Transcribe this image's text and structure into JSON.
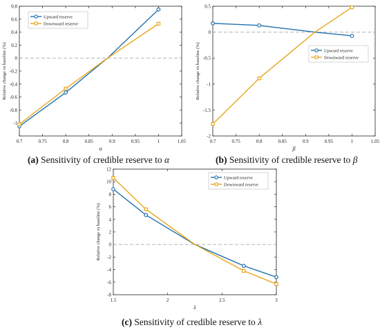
{
  "chart_data": [
    {
      "type": "line",
      "caption": {
        "label": "(a)",
        "text": "Sensitivity of credible reserve to",
        "symbol": "α"
      },
      "xlabel": "α",
      "ylabel": "Relative change vs baseline (%)",
      "xlim": [
        0.7,
        1.05
      ],
      "ylim": [
        -1.2,
        0.8
      ],
      "xticks": [
        0.7,
        0.75,
        0.8,
        0.85,
        0.9,
        0.95,
        1,
        1.05
      ],
      "xtick_labels": [
        "0.7",
        "0.75",
        "0.8",
        "0.85",
        "0.9",
        "0.95",
        "1",
        "1.05"
      ],
      "yticks": [
        -1.2,
        -1,
        -0.8,
        -0.6,
        -0.4,
        -0.2,
        0,
        0.2,
        0.4,
        0.6,
        0.8
      ],
      "ytick_labels": [
        "",
        "-1",
        "-0.8",
        "-0.6",
        "-0.4",
        "-0.2",
        "0",
        "0.2",
        "0.4",
        "0.6",
        "0.8"
      ],
      "baseline": 0,
      "legend": "top-left",
      "series": [
        {
          "name": "Upward reserve",
          "color": "#1f6fad",
          "marker": "circle",
          "x": [
            0.7,
            0.8,
            0.89,
            1.0
          ],
          "y": [
            -1.05,
            -0.53,
            0,
            0.75
          ]
        },
        {
          "name": "Downward reserve",
          "color": "#e6a619",
          "marker": "square",
          "x": [
            0.7,
            0.8,
            0.89,
            1.0
          ],
          "y": [
            -1.02,
            -0.47,
            0,
            0.53
          ]
        }
      ]
    },
    {
      "type": "line",
      "caption": {
        "label": "(b)",
        "text": "Sensitivity of credible reserve to",
        "symbol": "β"
      },
      "xlabel": "β",
      "ylabel": "Relative change vs baseline (%)",
      "xlim": [
        0.7,
        1.05
      ],
      "ylim": [
        -2,
        0.5
      ],
      "xticks": [
        0.7,
        0.75,
        0.8,
        0.85,
        0.9,
        0.95,
        1,
        1.05
      ],
      "xtick_labels": [
        "0.7",
        "0.75",
        "0.8",
        "0.85",
        "0.9",
        "0.95",
        "1",
        "1.05"
      ],
      "yticks": [
        -2,
        -1.5,
        -1,
        -0.5,
        0,
        0.5
      ],
      "ytick_labels": [
        "-2",
        "-1.5",
        "-1",
        "-0.5",
        "0",
        "0.5"
      ],
      "baseline": 0,
      "legend": "center-right",
      "series": [
        {
          "name": "Upward reserve",
          "color": "#1f6fad",
          "marker": "circle",
          "x": [
            0.7,
            0.8,
            0.92,
            1.0
          ],
          "y": [
            0.17,
            0.13,
            0,
            -0.07
          ]
        },
        {
          "name": "Downward reserve",
          "color": "#e6a619",
          "marker": "square",
          "x": [
            0.7,
            0.8,
            0.92,
            1.0
          ],
          "y": [
            -1.77,
            -0.89,
            0,
            0.48
          ]
        }
      ]
    },
    {
      "type": "line",
      "caption": {
        "label": "(c)",
        "text": "Sensitivity of credible reserve to",
        "symbol": "λ"
      },
      "xlabel": "λ",
      "ylabel": "Relative change vs baseline (%)",
      "xlim": [
        1.5,
        3
      ],
      "ylim": [
        -8,
        12
      ],
      "xticks": [
        1.5,
        2,
        2.5,
        3
      ],
      "xtick_labels": [
        "1.5",
        "2",
        "2.5",
        "3"
      ],
      "yticks": [
        -8,
        -6,
        -4,
        -2,
        0,
        2,
        4,
        6,
        8,
        10,
        12
      ],
      "ytick_labels": [
        "-8",
        "-6",
        "-4",
        "-2",
        "0",
        "2",
        "4",
        "6",
        "8",
        "10",
        "12"
      ],
      "baseline": 0,
      "legend": "top-right",
      "series": [
        {
          "name": "Upward reserve",
          "color": "#1f6fad",
          "marker": "circle",
          "x": [
            1.5,
            1.8,
            2.25,
            2.7,
            3.0
          ],
          "y": [
            8.8,
            4.7,
            0,
            -3.4,
            -5.2
          ]
        },
        {
          "name": "Downward reserve",
          "color": "#e6a619",
          "marker": "square",
          "x": [
            1.5,
            1.8,
            2.25,
            2.7,
            3.0
          ],
          "y": [
            10.6,
            5.6,
            0,
            -4.2,
            -6.3
          ]
        }
      ]
    }
  ]
}
